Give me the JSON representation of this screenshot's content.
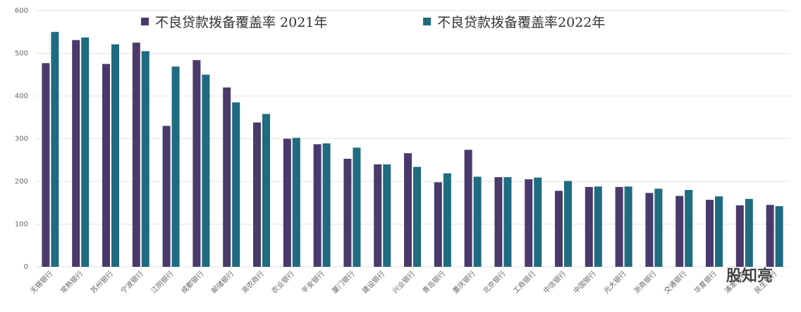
{
  "chart_data": {
    "type": "bar",
    "categories": [
      "无锡银行",
      "常熟银行",
      "苏州银行",
      "宁波银行",
      "江阴银行",
      "成都银行",
      "邮储银行",
      "渝农商行",
      "农业银行",
      "平安银行",
      "厦门银行",
      "建设银行",
      "兴业银行",
      "青岛银行",
      "重庆银行",
      "北京银行",
      "工商银行",
      "中信银行",
      "中国银行",
      "光大银行",
      "浙商银行",
      "交通银行",
      "华夏银行",
      "浦发银行",
      "民生银行"
    ],
    "series": [
      {
        "name": "不良贷款拨备覆盖率 2021年",
        "color": "#4a3a6c",
        "values": [
          477,
          531,
          475,
          525,
          330,
          484,
          420,
          338,
          300,
          287,
          253,
          240,
          266,
          198,
          274,
          210,
          205,
          178,
          187,
          187,
          173,
          166,
          157,
          144,
          145
        ]
      },
      {
        "name": "不良贷款拨备覆盖率2022年",
        "color": "#1f6b80",
        "values": [
          550,
          537,
          521,
          505,
          469,
          450,
          385,
          358,
          302,
          289,
          279,
          240,
          234,
          219,
          211,
          210,
          209,
          201,
          188,
          188,
          183,
          180,
          165,
          159,
          142
        ]
      }
    ],
    "ylim": [
      0,
      600
    ],
    "yticks": [
      0,
      100,
      200,
      300,
      400,
      500,
      600
    ],
    "grid": true,
    "watermark": "股知亮"
  }
}
